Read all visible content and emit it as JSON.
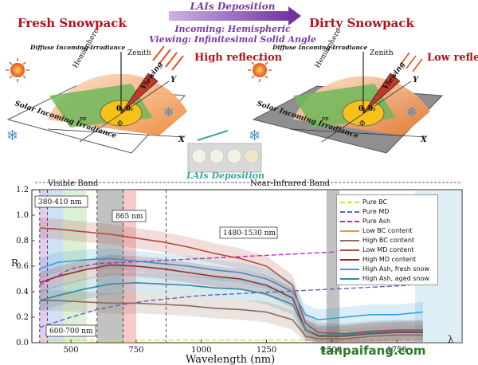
{
  "top": {
    "left_title": "Fresh Snowpack",
    "right_title": "Dirty Snowpack",
    "arrow_title": "LAIs Deposition",
    "incoming": "Incoming: Hemispheric",
    "viewing": "Viewing: Infinitesimal Solid Angle",
    "zenith": "Zenith",
    "hemisphere": "Hemisphere",
    "viewing_label": "Viewing",
    "diffuse": "Diffuse Incoming Irradiance",
    "solar": "Solar Incoming Irradiance",
    "pp": "PP",
    "high_reflection": "High reflection",
    "low_reflection": "Low reflection",
    "lais_deposition": "LAIs Deposition",
    "theta_i": "θᵢ",
    "theta_r": "θᵣ",
    "phi": "Φ",
    "axis_x": "X",
    "axis_y": "Y",
    "colors": {
      "red_title": "#b3121a",
      "purple": "#7a3aa6",
      "teal": "#3aa6a0"
    }
  },
  "chart_data": {
    "type": "line",
    "xlabel": "Wavelength (nm)",
    "ylabel": "R",
    "xlim": [
      350,
      2000
    ],
    "ylim": [
      0,
      1.2
    ],
    "xticks": [
      500,
      750,
      1000,
      1250,
      1500,
      1750
    ],
    "yticks": [
      0.0,
      0.2,
      0.4,
      0.6,
      0.8,
      1.0,
      1.2
    ],
    "bands": {
      "visible": "Visible Band",
      "nir": "Near-Infrared Band",
      "lambda": "λ"
    },
    "annotations": [
      "380-410 nm",
      "865 nm",
      "1480-1530 nm",
      "600-700 nm"
    ],
    "legend": [
      {
        "name": "Pure BC",
        "color": "#e8d73a",
        "dash": "6,3"
      },
      {
        "name": "Pure MD",
        "color": "#5b5fc7",
        "dash": "6,3"
      },
      {
        "name": "Pure Ash",
        "color": "#b02bd0",
        "dash": "6,3"
      },
      {
        "name": "Low BC content",
        "color": "#e0a030",
        "dash": ""
      },
      {
        "name": "High BC content",
        "color": "#8a6a5a",
        "dash": ""
      },
      {
        "name": "Low MD content",
        "color": "#b04a3a",
        "dash": ""
      },
      {
        "name": "High MD content",
        "color": "#8a2f2f",
        "dash": ""
      },
      {
        "name": "High Ash, fresh snow",
        "color": "#3aa0d8",
        "dash": ""
      },
      {
        "name": "High Ash, aged snow",
        "color": "#2f8aa8",
        "dash": ""
      }
    ],
    "series": [
      {
        "name": "Pure Ash",
        "color": "#b02bd0",
        "dash": "6,3",
        "x": [
          380,
          500,
          600,
          700,
          800,
          900,
          1000,
          1100,
          1200,
          1300,
          1400,
          1500,
          1600,
          1700,
          1800
        ],
        "y": [
          0.45,
          0.58,
          0.62,
          0.63,
          0.64,
          0.65,
          0.66,
          0.67,
          0.68,
          0.69,
          0.7,
          0.71,
          0.73,
          0.75,
          0.77
        ]
      },
      {
        "name": "Pure MD",
        "color": "#5b5fc7",
        "dash": "6,3",
        "x": [
          380,
          500,
          600,
          700,
          800,
          900,
          1000,
          1100,
          1200,
          1300,
          1400,
          1500,
          1600,
          1700,
          1800
        ],
        "y": [
          0.12,
          0.2,
          0.26,
          0.3,
          0.33,
          0.35,
          0.37,
          0.38,
          0.39,
          0.4,
          0.41,
          0.42,
          0.43,
          0.44,
          0.45
        ]
      },
      {
        "name": "Pure BC",
        "color": "#e8d73a",
        "dash": "6,3",
        "x": [
          380,
          600,
          800,
          1000,
          1200,
          1400,
          1600,
          1800
        ],
        "y": [
          0.02,
          0.02,
          0.02,
          0.02,
          0.02,
          0.02,
          0.02,
          0.02
        ]
      },
      {
        "name": "Low MD content",
        "color": "#b04a3a",
        "dash": "",
        "x": [
          380,
          450,
          550,
          650,
          750,
          850,
          950,
          1050,
          1150,
          1250,
          1350,
          1400,
          1450,
          1550,
          1650,
          1750,
          1850
        ],
        "y": [
          0.9,
          0.89,
          0.87,
          0.85,
          0.82,
          0.79,
          0.75,
          0.7,
          0.66,
          0.6,
          0.45,
          0.15,
          0.08,
          0.07,
          0.09,
          0.1,
          0.1
        ]
      },
      {
        "name": "High Ash, fresh snow",
        "color": "#3aa0d8",
        "dash": "",
        "x": [
          380,
          450,
          550,
          650,
          750,
          850,
          950,
          1050,
          1150,
          1250,
          1350,
          1400,
          1450,
          1550,
          1650,
          1750,
          1850
        ],
        "y": [
          0.58,
          0.63,
          0.65,
          0.66,
          0.64,
          0.62,
          0.6,
          0.57,
          0.55,
          0.5,
          0.4,
          0.22,
          0.18,
          0.2,
          0.22,
          0.22,
          0.24
        ]
      },
      {
        "name": "High MD content",
        "color": "#8a2f2f",
        "dash": "",
        "x": [
          380,
          450,
          550,
          650,
          750,
          850,
          950,
          1050,
          1150,
          1250,
          1350,
          1400,
          1450,
          1550,
          1650,
          1750,
          1850
        ],
        "y": [
          0.47,
          0.52,
          0.57,
          0.61,
          0.6,
          0.58,
          0.55,
          0.52,
          0.5,
          0.45,
          0.35,
          0.1,
          0.05,
          0.05,
          0.07,
          0.08,
          0.08
        ]
      },
      {
        "name": "High Ash, aged snow",
        "color": "#2f8aa8",
        "dash": "",
        "x": [
          380,
          450,
          550,
          650,
          750,
          850,
          950,
          1050,
          1150,
          1250,
          1350,
          1400,
          1450,
          1550,
          1650,
          1750,
          1850
        ],
        "y": [
          0.33,
          0.37,
          0.42,
          0.46,
          0.47,
          0.46,
          0.45,
          0.43,
          0.42,
          0.38,
          0.3,
          0.1,
          0.06,
          0.06,
          0.08,
          0.09,
          0.09
        ]
      },
      {
        "name": "High BC content",
        "color": "#8a6a5a",
        "dash": "",
        "x": [
          380,
          450,
          550,
          650,
          750,
          850,
          950,
          1050,
          1150,
          1250,
          1350,
          1400,
          1450,
          1550,
          1650,
          1750,
          1850
        ],
        "y": [
          0.33,
          0.33,
          0.32,
          0.31,
          0.31,
          0.3,
          0.29,
          0.27,
          0.26,
          0.24,
          0.18,
          0.05,
          0.03,
          0.03,
          0.05,
          0.06,
          0.06
        ]
      }
    ]
  },
  "watermark": "tanpaifang.com"
}
